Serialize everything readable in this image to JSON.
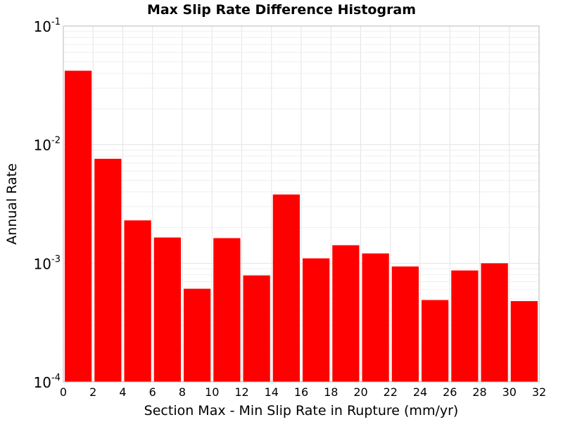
{
  "chart_data": {
    "type": "bar",
    "title": "Max Slip Rate Difference Histogram",
    "xlabel": "Section Max - Min Slip Rate in Rupture (mm/yr)",
    "ylabel": "Annual Rate",
    "x_range": [
      0,
      32
    ],
    "y_range": [
      0.0001,
      0.1
    ],
    "y_scale": "log",
    "grid": true,
    "x_ticks": [
      "0",
      "2",
      "4",
      "6",
      "8",
      "10",
      "12",
      "14",
      "16",
      "18",
      "20",
      "22",
      "24",
      "26",
      "28",
      "30",
      "32"
    ],
    "y_ticks": [
      {
        "base": "10",
        "exp": "-1",
        "value": 0.1
      },
      {
        "base": "10",
        "exp": "-2",
        "value": 0.01
      },
      {
        "base": "10",
        "exp": "-3",
        "value": 0.001
      },
      {
        "base": "10",
        "exp": "-4",
        "value": 0.0001
      }
    ],
    "bin_width": 2,
    "bins": [
      {
        "x0": 0,
        "value": 0.042
      },
      {
        "x0": 2,
        "value": 0.0076
      },
      {
        "x0": 4,
        "value": 0.0023
      },
      {
        "x0": 6,
        "value": 0.00165
      },
      {
        "x0": 8,
        "value": 0.00061
      },
      {
        "x0": 10,
        "value": 0.00163
      },
      {
        "x0": 12,
        "value": 0.00079
      },
      {
        "x0": 14,
        "value": 0.0038
      },
      {
        "x0": 16,
        "value": 0.0011
      },
      {
        "x0": 18,
        "value": 0.00142
      },
      {
        "x0": 20,
        "value": 0.00121
      },
      {
        "x0": 22,
        "value": 0.00094
      },
      {
        "x0": 24,
        "value": 0.00049
      },
      {
        "x0": 26,
        "value": 0.00087
      },
      {
        "x0": 28,
        "value": 0.001
      },
      {
        "x0": 30,
        "value": 0.00048
      }
    ],
    "bar_color": "#ff0000"
  }
}
